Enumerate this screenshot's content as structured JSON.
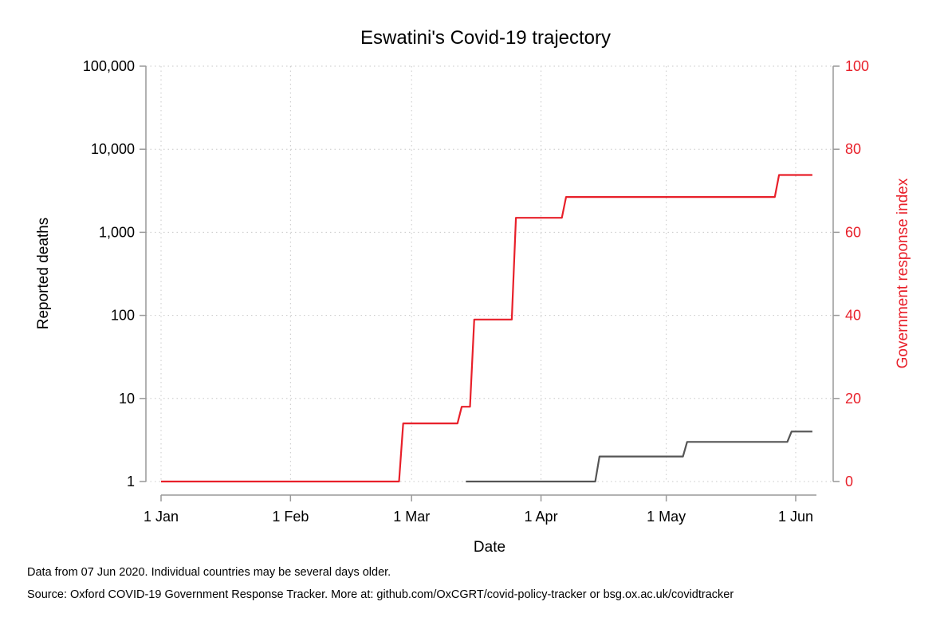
{
  "chart_data": {
    "type": "line",
    "title": "Eswatini's Covid-19 trajectory",
    "xlabel": "Date",
    "ylabel_left": "Reported deaths",
    "ylabel_right": "Government response index",
    "x_axis": {
      "type": "date",
      "range": [
        "2020-01-01",
        "2020-06-07"
      ],
      "ticks": [
        {
          "date": "2020-01-01",
          "label": "1 Jan"
        },
        {
          "date": "2020-02-01",
          "label": "1 Feb"
        },
        {
          "date": "2020-03-01",
          "label": "1 Mar"
        },
        {
          "date": "2020-04-01",
          "label": "1 Apr"
        },
        {
          "date": "2020-05-01",
          "label": "1 May"
        },
        {
          "date": "2020-06-01",
          "label": "1 Jun"
        }
      ]
    },
    "y_left": {
      "scale": "log",
      "range": [
        1,
        100000
      ],
      "ticks": [
        {
          "value": 1,
          "label": "1"
        },
        {
          "value": 10,
          "label": "10"
        },
        {
          "value": 100,
          "label": "100"
        },
        {
          "value": 1000,
          "label": "1,000"
        },
        {
          "value": 10000,
          "label": "10,000"
        },
        {
          "value": 100000,
          "label": "100,000"
        }
      ]
    },
    "y_right": {
      "scale": "linear",
      "range": [
        0,
        100
      ],
      "ticks": [
        {
          "value": 0,
          "label": "0"
        },
        {
          "value": 20,
          "label": "20"
        },
        {
          "value": 40,
          "label": "40"
        },
        {
          "value": 60,
          "label": "60"
        },
        {
          "value": 80,
          "label": "80"
        },
        {
          "value": 100,
          "label": "100"
        }
      ]
    },
    "grid": true,
    "series": [
      {
        "axis": "left",
        "color": "#555555",
        "points": [
          [
            "2020-03-14",
            1
          ],
          [
            "2020-04-14",
            1
          ],
          [
            "2020-04-15",
            2
          ],
          [
            "2020-05-05",
            2
          ],
          [
            "2020-05-06",
            3
          ],
          [
            "2020-05-30",
            3
          ],
          [
            "2020-05-31",
            4
          ],
          [
            "2020-06-05",
            4
          ]
        ]
      },
      {
        "axis": "right",
        "color": "#e8202a",
        "points": [
          [
            "2020-01-01",
            0
          ],
          [
            "2020-02-27",
            0
          ],
          [
            "2020-02-28",
            14
          ],
          [
            "2020-03-12",
            14
          ],
          [
            "2020-03-13",
            18
          ],
          [
            "2020-03-15",
            18
          ],
          [
            "2020-03-16",
            39
          ],
          [
            "2020-03-25",
            39
          ],
          [
            "2020-03-26",
            63.5
          ],
          [
            "2020-04-06",
            63.5
          ],
          [
            "2020-04-07",
            68.5
          ],
          [
            "2020-05-27",
            68.5
          ],
          [
            "2020-05-28",
            73.8
          ],
          [
            "2020-06-05",
            73.8
          ]
        ]
      }
    ]
  },
  "notes": {
    "line1": "Data from 07 Jun 2020. Individual countries may be several days older.",
    "line2": "Source: Oxford COVID-19 Government Response Tracker. More at: github.com/OxCGRT/covid-policy-tracker or bsg.ox.ac.uk/covidtracker"
  },
  "colors": {
    "right_axis": "#e8202a",
    "left_axis": "#000000",
    "axis_line": "#999999",
    "grid": "#c8c8c8"
  }
}
